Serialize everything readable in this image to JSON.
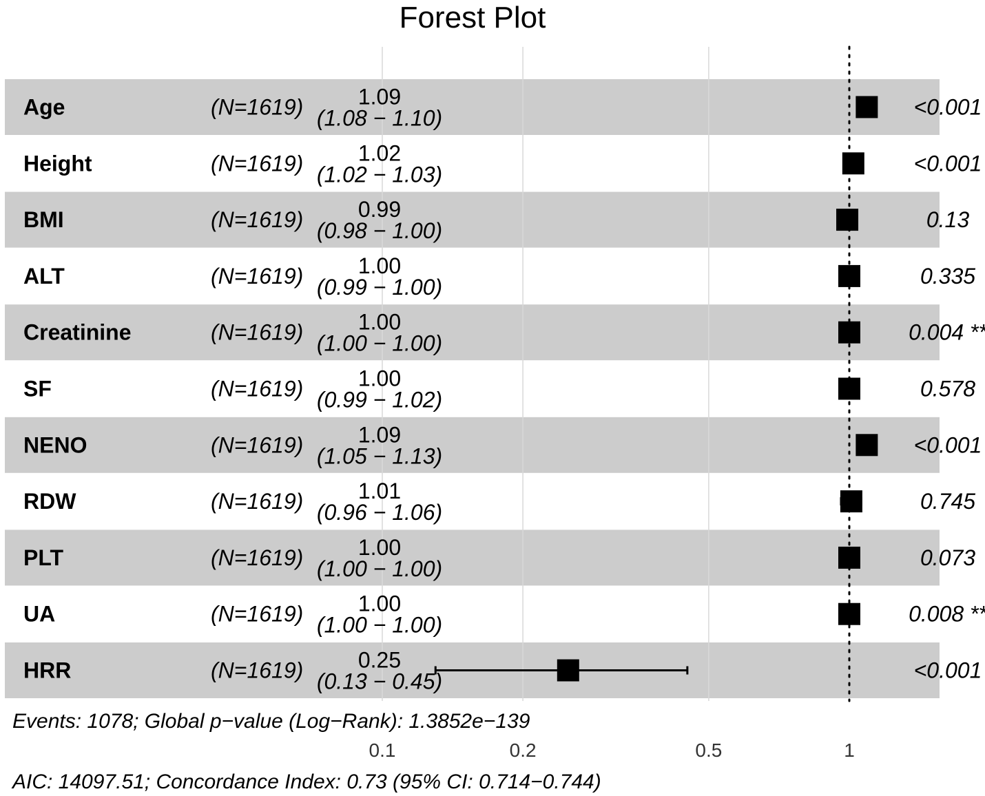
{
  "chart_data": {
    "type": "forest",
    "title": "Forest Plot",
    "x_scale": "log",
    "xlim": [
      0.07,
      1.17
    ],
    "x_ticks": [
      "0.1",
      "0.2",
      "0.5",
      "1"
    ],
    "x_tick_values": [
      0.1,
      0.2,
      0.5,
      1
    ],
    "reference_line": 1,
    "grid": true,
    "row_shading": "alternating gray",
    "colors": {
      "band": "#cccccc",
      "grid": "#d9d9d9",
      "marker": "#000000"
    },
    "rows": [
      {
        "variable": "Age",
        "n_label": "(N=1619)",
        "hr_label": "1.09",
        "ci_label": "(1.08 − 1.10)",
        "hr": 1.09,
        "lo": 1.08,
        "hi": 1.1,
        "p_label": "<0.001",
        "sig": ""
      },
      {
        "variable": "Height",
        "n_label": "(N=1619)",
        "hr_label": "1.02",
        "ci_label": "(1.02 − 1.03)",
        "hr": 1.02,
        "lo": 1.02,
        "hi": 1.03,
        "p_label": "<0.001",
        "sig": ""
      },
      {
        "variable": "BMI",
        "n_label": "(N=1619)",
        "hr_label": "0.99",
        "ci_label": "(0.98 − 1.00)",
        "hr": 0.99,
        "lo": 0.98,
        "hi": 1.0,
        "p_label": "0.13",
        "sig": ""
      },
      {
        "variable": "ALT",
        "n_label": "(N=1619)",
        "hr_label": "1.00",
        "ci_label": "(0.99 − 1.00)",
        "hr": 1.0,
        "lo": 0.99,
        "hi": 1.0,
        "p_label": "0.335",
        "sig": ""
      },
      {
        "variable": "Creatinine",
        "n_label": "(N=1619)",
        "hr_label": "1.00",
        "ci_label": "(1.00 − 1.00)",
        "hr": 1.0,
        "lo": 1.0,
        "hi": 1.0,
        "p_label": "0.004",
        "sig": "**"
      },
      {
        "variable": "SF",
        "n_label": "(N=1619)",
        "hr_label": "1.00",
        "ci_label": "(0.99 − 1.02)",
        "hr": 1.0,
        "lo": 0.99,
        "hi": 1.02,
        "p_label": "0.578",
        "sig": ""
      },
      {
        "variable": "NENO",
        "n_label": "(N=1619)",
        "hr_label": "1.09",
        "ci_label": "(1.05 − 1.13)",
        "hr": 1.09,
        "lo": 1.05,
        "hi": 1.13,
        "p_label": "<0.001",
        "sig": ""
      },
      {
        "variable": "RDW",
        "n_label": "(N=1619)",
        "hr_label": "1.01",
        "ci_label": "(0.96 − 1.06)",
        "hr": 1.01,
        "lo": 0.96,
        "hi": 1.06,
        "p_label": "0.745",
        "sig": ""
      },
      {
        "variable": "PLT",
        "n_label": "(N=1619)",
        "hr_label": "1.00",
        "ci_label": "(1.00 − 1.00)",
        "hr": 1.0,
        "lo": 1.0,
        "hi": 1.0,
        "p_label": "0.073",
        "sig": ""
      },
      {
        "variable": "UA",
        "n_label": "(N=1619)",
        "hr_label": "1.00",
        "ci_label": "(1.00 − 1.00)",
        "hr": 1.0,
        "lo": 1.0,
        "hi": 1.0,
        "p_label": "0.008",
        "sig": "**"
      },
      {
        "variable": "HRR",
        "n_label": "(N=1619)",
        "hr_label": "0.25",
        "ci_label": "(0.13 − 0.45)",
        "hr": 0.25,
        "lo": 0.13,
        "hi": 0.45,
        "p_label": "<0.001",
        "sig": ""
      }
    ],
    "footer": [
      "Events: 1078; Global p−value (Log−Rank): 1.3852e−139",
      "AIC: 14097.51; Concordance Index: 0.73 (95% CI: 0.714−0.744)"
    ]
  }
}
